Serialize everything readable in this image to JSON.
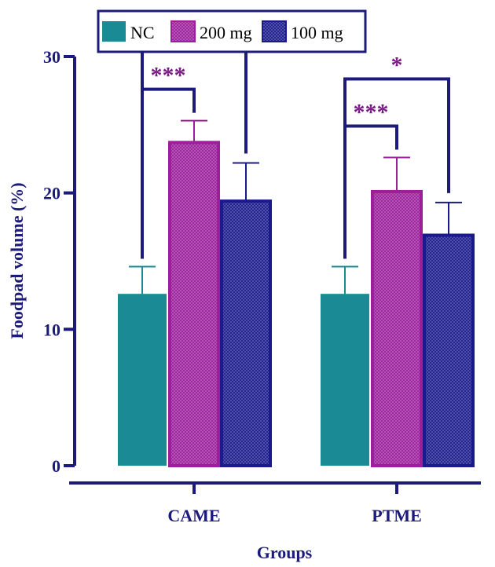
{
  "chart_data": {
    "type": "bar",
    "title": "",
    "xlabel": "Groups",
    "ylabel": "Foodpad volume (%)",
    "ylim": [
      0,
      30
    ],
    "yticks": [
      0,
      10,
      20,
      30
    ],
    "ytick_labels": [
      "0",
      "10",
      "20",
      "30"
    ],
    "grid": false,
    "legend_position": "top-left",
    "categories": [
      "CAME",
      "PTME"
    ],
    "series": [
      {
        "name": "NC",
        "values": [
          12.6,
          12.6
        ],
        "errors": [
          2.0,
          2.0
        ],
        "color": "#1a8a94",
        "pattern": "solid"
      },
      {
        "name": "200 mg",
        "values": [
          23.7,
          20.1
        ],
        "errors": [
          1.6,
          2.5
        ],
        "color": "#9b1f9b",
        "pattern": "crosshatch"
      },
      {
        "name": "100 mg",
        "values": [
          19.4,
          16.9
        ],
        "errors": [
          2.8,
          2.4
        ],
        "color": "#1a1a8c",
        "pattern": "crosshatch"
      }
    ],
    "annotations": [
      {
        "category": "CAME",
        "from_series": "NC",
        "to_series": "200 mg",
        "label": "***"
      },
      {
        "category": "CAME",
        "from_series": "NC",
        "to_series": "100 mg",
        "label": "**"
      },
      {
        "category": "PTME",
        "from_series": "NC",
        "to_series": "200 mg",
        "label": "***"
      },
      {
        "category": "PTME",
        "from_series": "NC",
        "to_series": "100 mg",
        "label": "*"
      }
    ],
    "colors": {
      "axis": "#1c1a7a",
      "bracket": "#1c1a7a",
      "annotation_text": "#7b1a86"
    }
  }
}
